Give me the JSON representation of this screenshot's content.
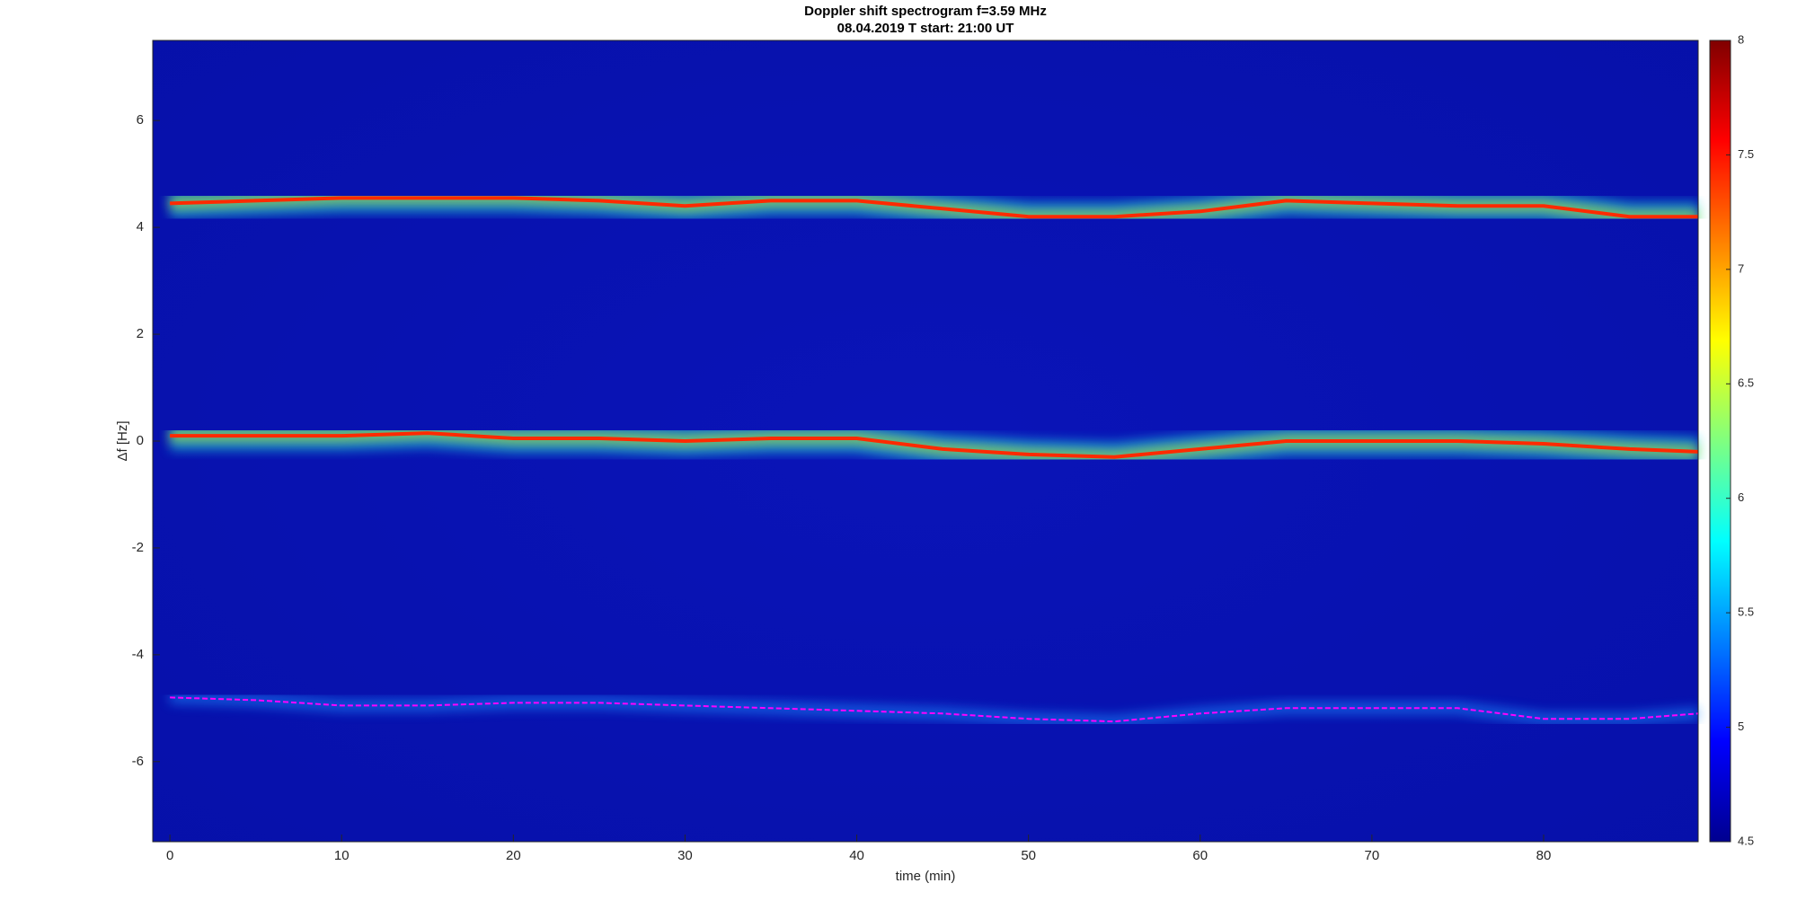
{
  "chart_data": {
    "type": "spectrogram",
    "title": "Doppler shift spectrogram f=3.59 MHz",
    "subtitle": "08.04.2019   T start: 21:00 UT",
    "x_label": "time (min)",
    "y_label": "Δf [Hz]",
    "xlim": [
      -1,
      89
    ],
    "ylim": [
      -7.5,
      7.5
    ],
    "xticks": [
      0,
      10,
      20,
      30,
      40,
      50,
      60,
      70,
      80
    ],
    "yticks": [
      -6,
      -4,
      -2,
      0,
      2,
      4,
      6
    ],
    "colormap": "jet",
    "clim": [
      4.5,
      8
    ],
    "cticks": [
      4.5,
      5,
      5.5,
      6,
      6.5,
      7,
      7.5,
      8
    ],
    "x": [
      0,
      5,
      10,
      15,
      20,
      25,
      30,
      35,
      40,
      45,
      50,
      55,
      60,
      65,
      70,
      75,
      80,
      85,
      89
    ],
    "series": [
      {
        "color": "#ff2a00",
        "values": [
          4.45,
          4.5,
          4.55,
          4.55,
          4.55,
          4.5,
          4.4,
          4.5,
          4.5,
          4.35,
          4.2,
          4.2,
          4.3,
          4.5,
          4.45,
          4.4,
          4.4,
          4.2,
          4.2
        ]
      },
      {
        "color": "#ff2a00",
        "values": [
          0.1,
          0.1,
          0.1,
          0.15,
          0.05,
          0.05,
          0,
          0.05,
          0.05,
          -0.15,
          -0.25,
          -0.3,
          -0.15,
          0,
          0,
          0,
          -0.05,
          -0.15,
          -0.2
        ]
      },
      {
        "color": "#ff00ff",
        "values": [
          -4.8,
          -4.85,
          -4.95,
          -4.95,
          -4.9,
          -4.9,
          -4.95,
          -5,
          -5.05,
          -5.1,
          -5.2,
          -5.25,
          -5.1,
          -5,
          -5,
          -5,
          -5.2,
          -5.2,
          -5.1
        ]
      }
    ]
  }
}
